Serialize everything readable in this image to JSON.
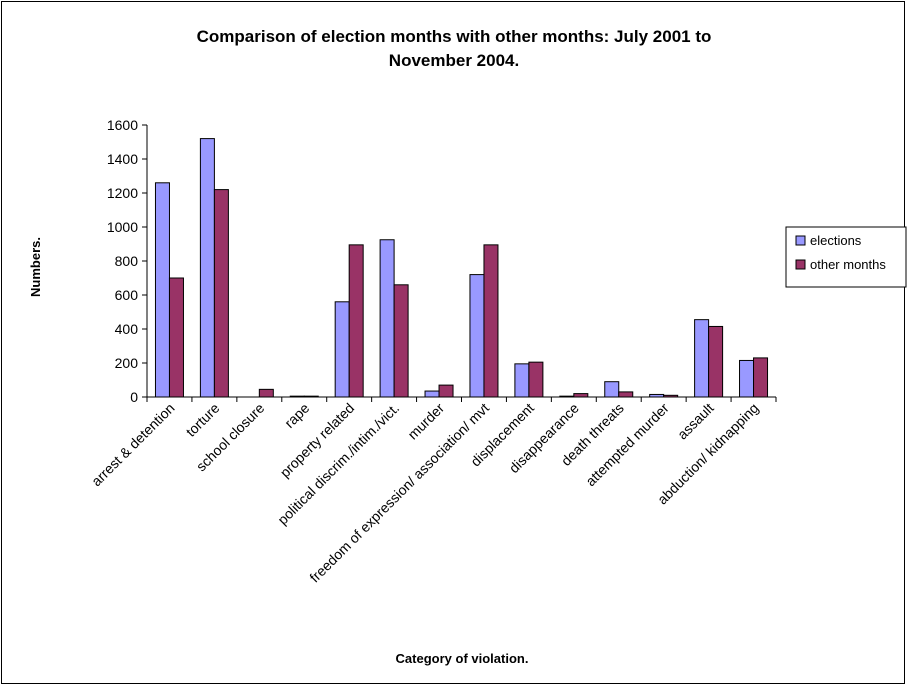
{
  "chart_data": {
    "type": "bar",
    "title_lines": [
      "Comparison of election months with other months: July 2001 to",
      "November 2004."
    ],
    "xlabel": "Category of violation.",
    "ylabel": "Numbers.",
    "ylim": [
      0,
      1600
    ],
    "yticks": [
      0,
      200,
      400,
      600,
      800,
      1000,
      1200,
      1400,
      1600
    ],
    "grid": false,
    "legend_position": "right",
    "categories": [
      "arrest & detention",
      "torture",
      "school closure",
      "rape",
      "property related",
      "political discrim./intim./vict.",
      "murder",
      "freedom of expression/ association/ mvt",
      "displacement",
      "disappearance",
      "death threats",
      "attempted murder",
      "assault",
      "abduction/ kidnapping"
    ],
    "series": [
      {
        "name": "elections",
        "color": "#9999ff",
        "values": [
          1260,
          1520,
          0,
          5,
          560,
          925,
          35,
          720,
          195,
          5,
          90,
          15,
          455,
          215
        ]
      },
      {
        "name": "other months",
        "color": "#993366",
        "values": [
          700,
          1220,
          45,
          5,
          895,
          660,
          70,
          895,
          205,
          20,
          30,
          10,
          415,
          230
        ]
      }
    ]
  }
}
